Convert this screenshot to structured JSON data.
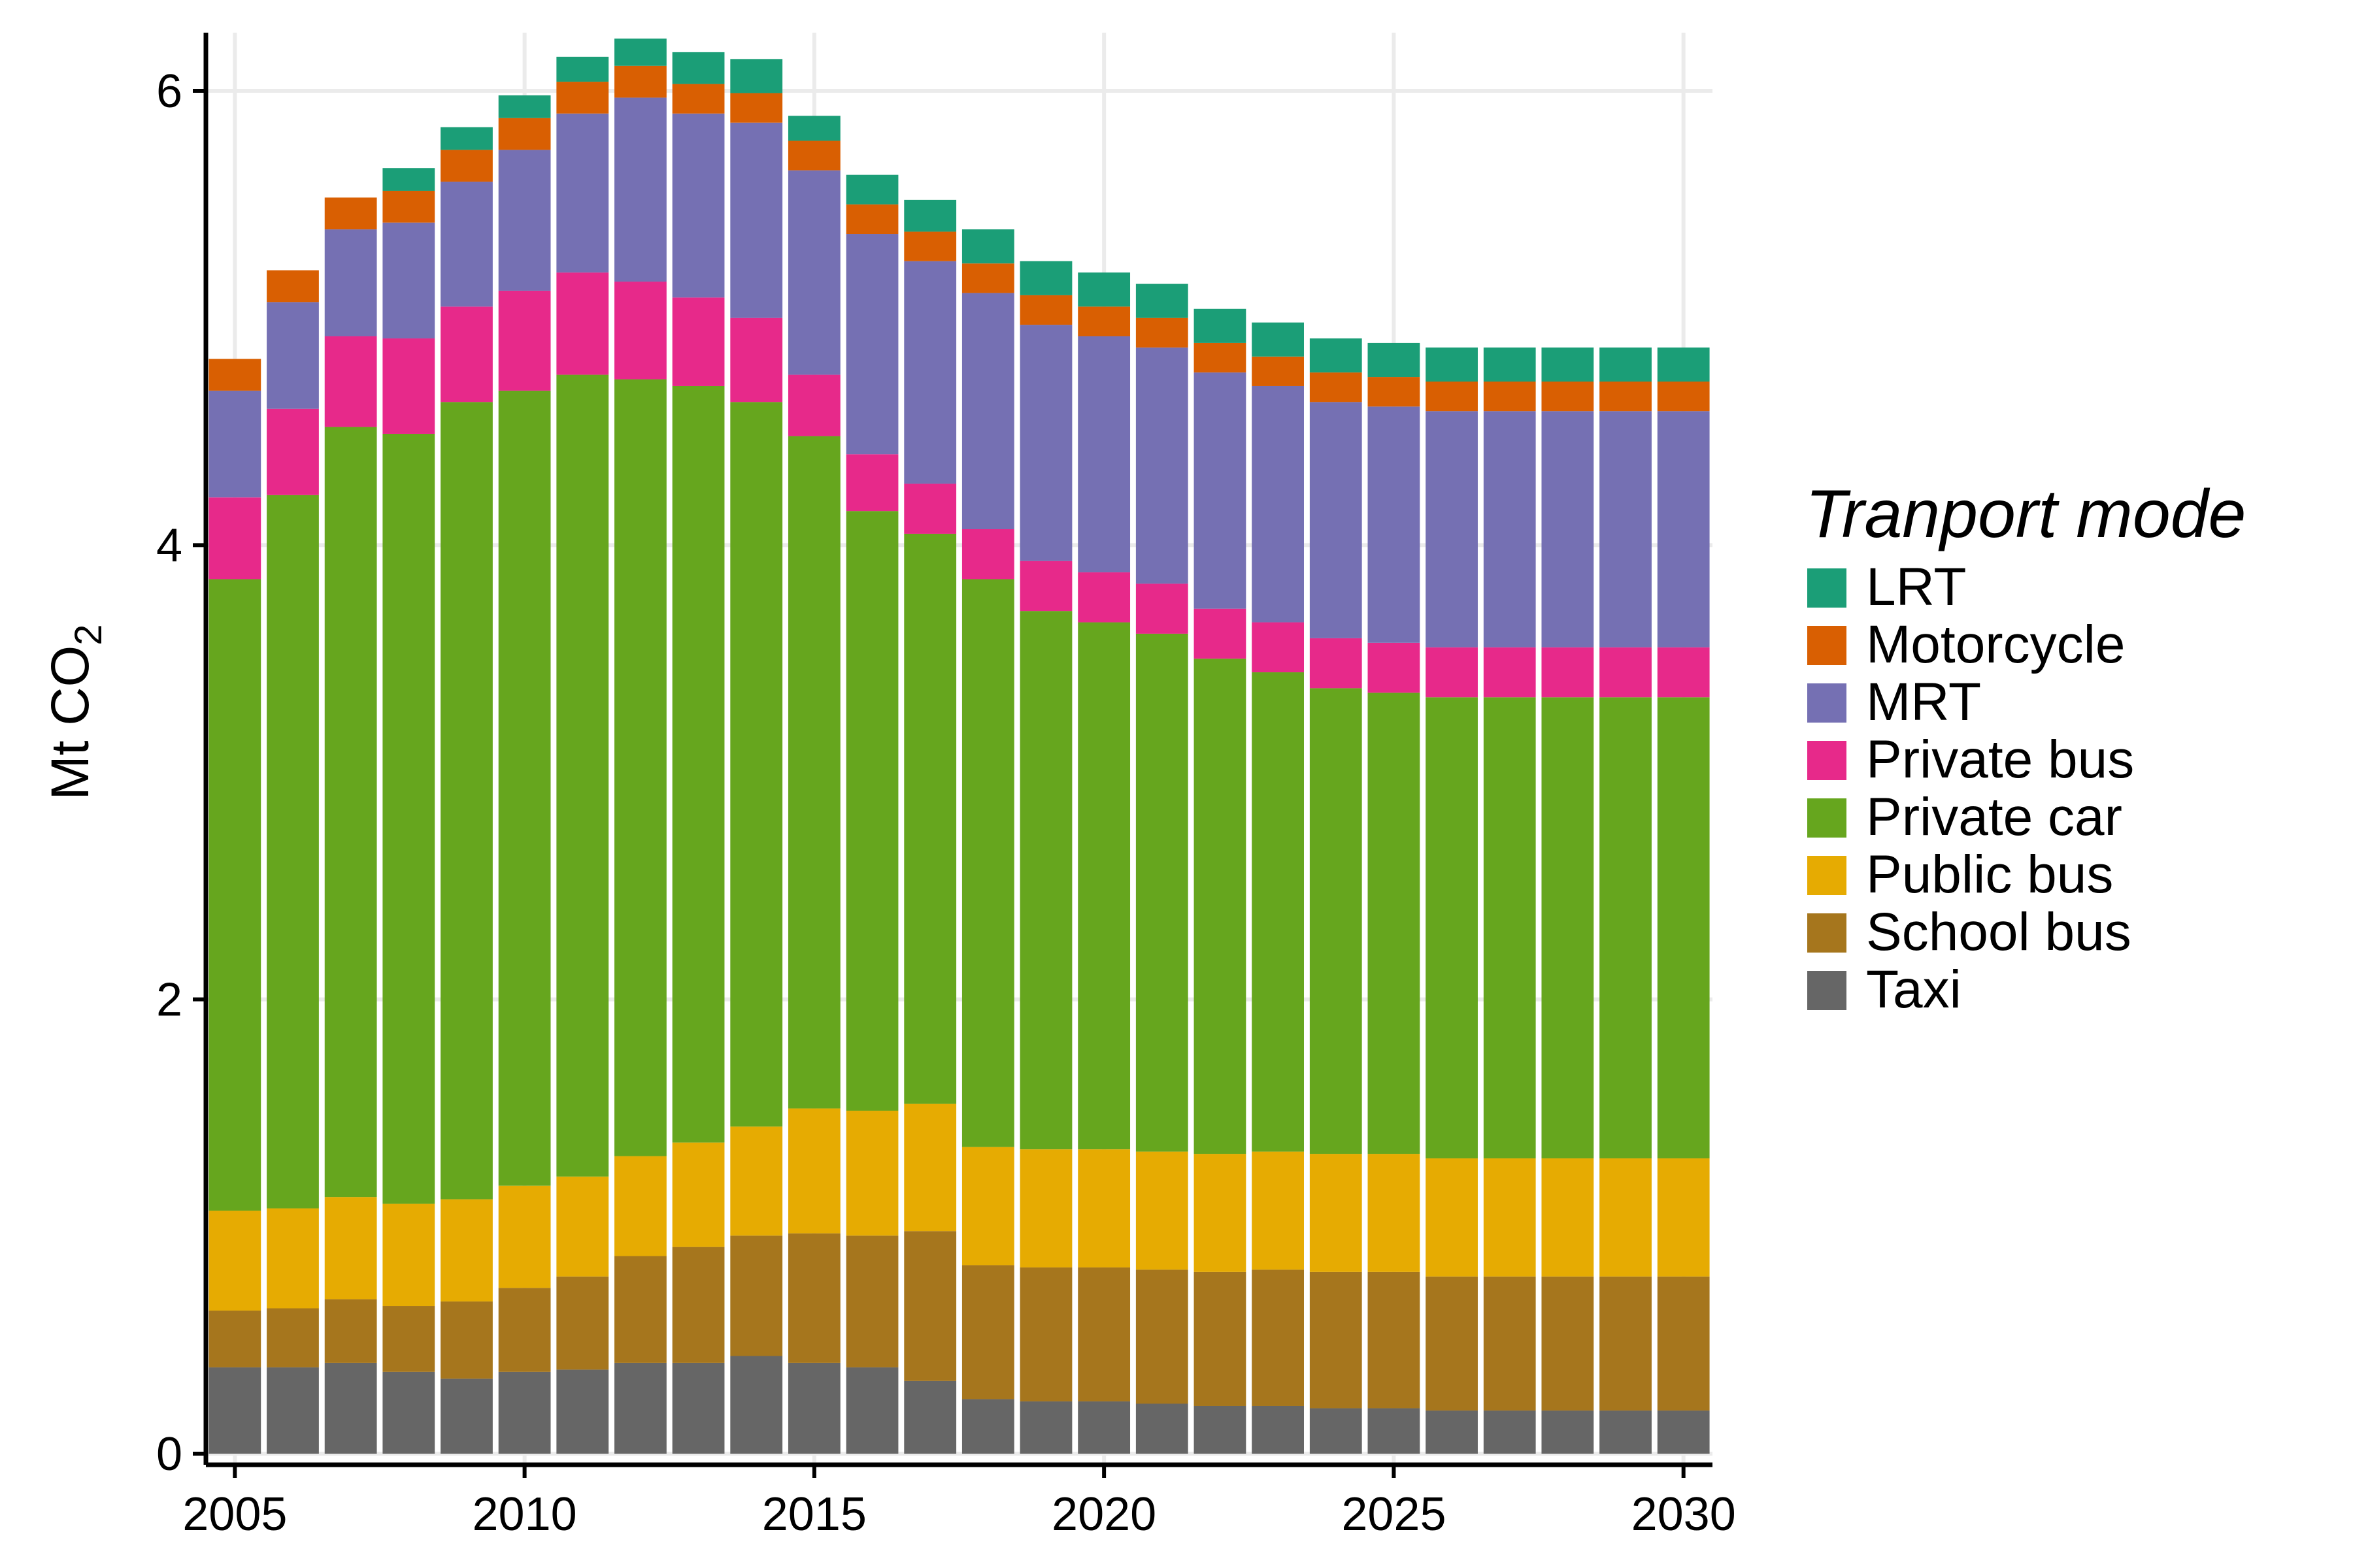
{
  "chart_data": {
    "type": "bar",
    "stacked": true,
    "x": [
      2005,
      2006,
      2007,
      2008,
      2009,
      2010,
      2011,
      2012,
      2013,
      2014,
      2015,
      2016,
      2017,
      2018,
      2019,
      2020,
      2021,
      2022,
      2023,
      2024,
      2025,
      2026,
      2027,
      2028,
      2029,
      2030
    ],
    "xticks": [
      "2005",
      "2010",
      "2015",
      "2020",
      "2025",
      "2030"
    ],
    "yticks": [
      "0",
      "2",
      "4",
      "6"
    ],
    "ylim": [
      0,
      6.2
    ],
    "xlim": [
      2004.5,
      2030.5
    ],
    "ylabel_main": "Mt CO",
    "ylabel_sub": "2",
    "grid": true,
    "legend_title": "Tranport mode",
    "legend_position": "right",
    "stack_order_bottom_to_top": [
      "Taxi",
      "School bus",
      "Public bus",
      "Private car",
      "Private bus",
      "MRT",
      "Motorcycle",
      "LRT"
    ],
    "series": [
      {
        "name": "LRT",
        "color": "#1b9e77",
        "values": [
          0,
          0,
          0,
          0.1,
          0.1,
          0.1,
          0.11,
          0.12,
          0.14,
          0.15,
          0.11,
          0.13,
          0.14,
          0.15,
          0.15,
          0.15,
          0.15,
          0.15,
          0.15,
          0.15,
          0.15,
          0.15,
          0.15,
          0.15,
          0.15,
          0.15
        ]
      },
      {
        "name": "Motorcycle",
        "color": "#d95f02",
        "values": [
          0.14,
          0.14,
          0.14,
          0.14,
          0.14,
          0.14,
          0.14,
          0.14,
          0.13,
          0.13,
          0.13,
          0.13,
          0.13,
          0.13,
          0.13,
          0.13,
          0.13,
          0.13,
          0.13,
          0.13,
          0.13,
          0.13,
          0.13,
          0.13,
          0.13,
          0.13
        ]
      },
      {
        "name": "MRT",
        "color": "#7570b3",
        "values": [
          0.47,
          0.47,
          0.47,
          0.51,
          0.55,
          0.62,
          0.7,
          0.81,
          0.81,
          0.86,
          0.9,
          0.97,
          0.98,
          1.04,
          1.04,
          1.04,
          1.04,
          1.04,
          1.04,
          1.04,
          1.04,
          1.04,
          1.04,
          1.04,
          1.04,
          1.04
        ]
      },
      {
        "name": "Private bus",
        "color": "#e7298a",
        "values": [
          0.36,
          0.38,
          0.4,
          0.42,
          0.42,
          0.44,
          0.45,
          0.43,
          0.39,
          0.37,
          0.27,
          0.25,
          0.22,
          0.22,
          0.22,
          0.22,
          0.22,
          0.22,
          0.22,
          0.22,
          0.22,
          0.22,
          0.22,
          0.22,
          0.22,
          0.22
        ]
      },
      {
        "name": "Private car",
        "color": "#66a61e",
        "values": [
          2.78,
          3.14,
          3.39,
          3.39,
          3.51,
          3.5,
          3.53,
          3.42,
          3.33,
          3.19,
          2.96,
          2.64,
          2.51,
          2.5,
          2.37,
          2.32,
          2.28,
          2.18,
          2.11,
          2.05,
          2.03,
          2.03,
          2.03,
          2.03,
          2.03,
          2.03
        ]
      },
      {
        "name": "Public bus",
        "color": "#e6ab02",
        "values": [
          0.44,
          0.44,
          0.45,
          0.45,
          0.45,
          0.45,
          0.44,
          0.44,
          0.46,
          0.48,
          0.55,
          0.55,
          0.56,
          0.52,
          0.52,
          0.52,
          0.52,
          0.52,
          0.52,
          0.52,
          0.52,
          0.52,
          0.52,
          0.52,
          0.52,
          0.52
        ]
      },
      {
        "name": "School bus",
        "color": "#a6761d",
        "values": [
          0.25,
          0.26,
          0.28,
          0.29,
          0.34,
          0.37,
          0.41,
          0.47,
          0.51,
          0.53,
          0.57,
          0.58,
          0.66,
          0.59,
          0.59,
          0.59,
          0.59,
          0.59,
          0.6,
          0.6,
          0.6,
          0.59,
          0.59,
          0.59,
          0.59,
          0.59
        ]
      },
      {
        "name": "Taxi",
        "color": "#666666",
        "values": [
          0.38,
          0.38,
          0.4,
          0.36,
          0.33,
          0.36,
          0.37,
          0.4,
          0.4,
          0.43,
          0.4,
          0.38,
          0.32,
          0.24,
          0.23,
          0.23,
          0.22,
          0.21,
          0.21,
          0.2,
          0.2,
          0.19,
          0.19,
          0.19,
          0.19,
          0.19
        ]
      }
    ]
  }
}
